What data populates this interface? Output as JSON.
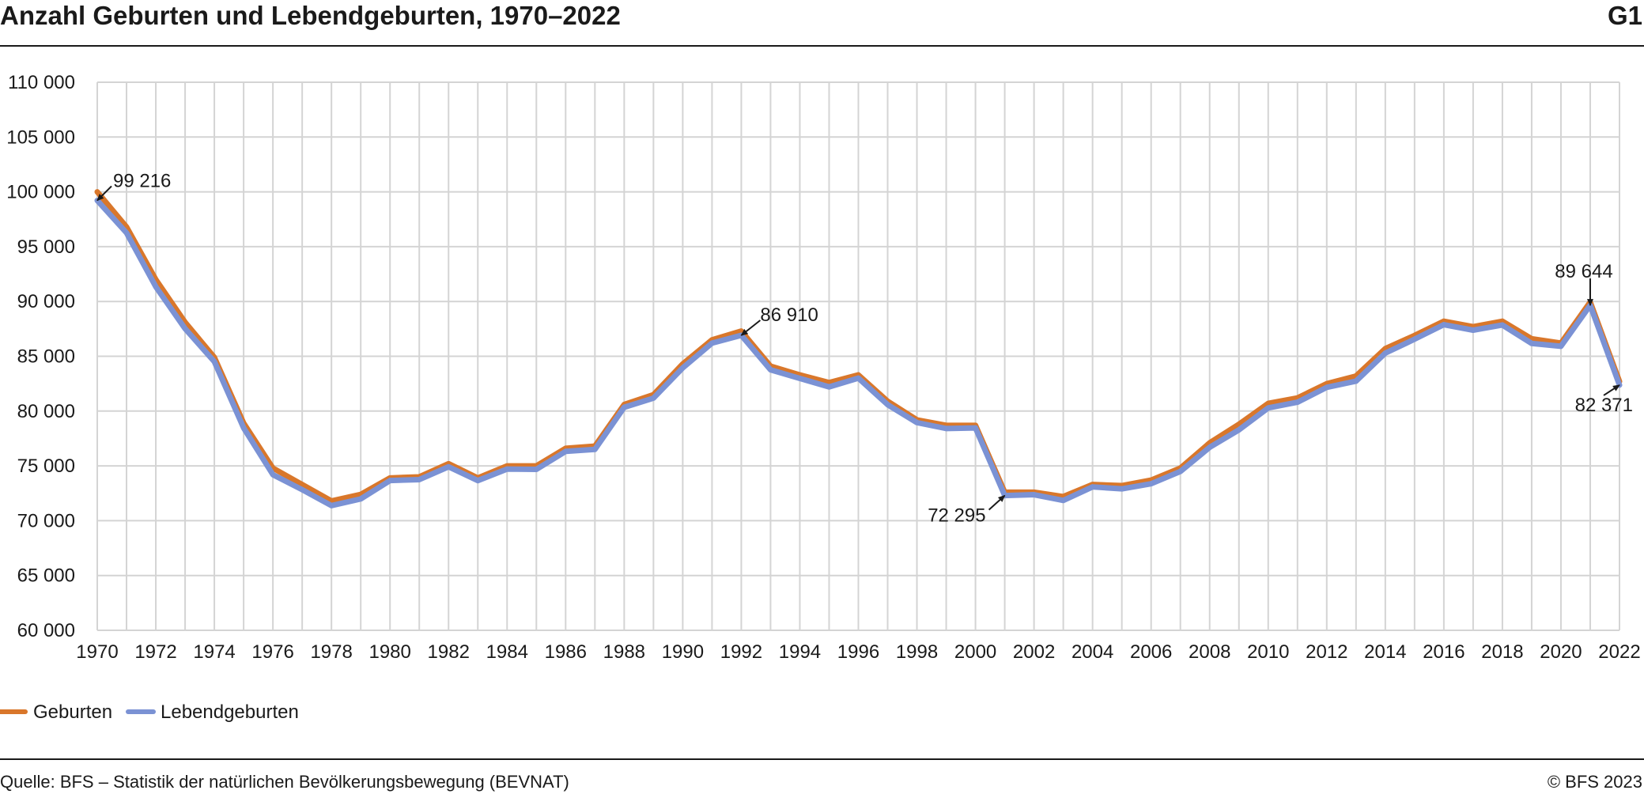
{
  "header": {
    "title": "Anzahl Geburten und Lebendgeburten, 1970–2022",
    "code": "G1"
  },
  "footer": {
    "source": "Quelle: BFS – Statistik der natürlichen Bevölkerungsbewegung (BEVNAT)",
    "copyright": "© BFS 2023"
  },
  "colors": {
    "geburten": "#d9772b",
    "lebendgeburten": "#7b92d4",
    "grid": "#d4d4d4",
    "text": "#1a1a1a"
  },
  "chart_data": {
    "type": "line",
    "title": "Anzahl Geburten und Lebendgeburten, 1970–2022",
    "xlabel": "",
    "ylabel": "",
    "x": [
      1970,
      1971,
      1972,
      1973,
      1974,
      1975,
      1976,
      1977,
      1978,
      1979,
      1980,
      1981,
      1982,
      1983,
      1984,
      1985,
      1986,
      1987,
      1988,
      1989,
      1990,
      1991,
      1992,
      1993,
      1994,
      1995,
      1996,
      1997,
      1998,
      1999,
      2000,
      2001,
      2002,
      2003,
      2004,
      2005,
      2006,
      2007,
      2008,
      2009,
      2010,
      2011,
      2012,
      2013,
      2014,
      2015,
      2016,
      2017,
      2018,
      2019,
      2020,
      2021,
      2022
    ],
    "x_ticks": [
      "1970",
      "1972",
      "1974",
      "1976",
      "1978",
      "1980",
      "1982",
      "1984",
      "1986",
      "1988",
      "1990",
      "1992",
      "1994",
      "1996",
      "1998",
      "2000",
      "2002",
      "2004",
      "2006",
      "2008",
      "2010",
      "2012",
      "2014",
      "2016",
      "2018",
      "2020",
      "2022"
    ],
    "y_ticks": [
      "60 000",
      "65 000",
      "70 000",
      "75 000",
      "80 000",
      "85 000",
      "90 000",
      "95 000",
      "100 000",
      "105 000",
      "110 000"
    ],
    "ylim": [
      60000,
      110000
    ],
    "grid": true,
    "legend_position": "bottom-left",
    "series": [
      {
        "name": "Geburten",
        "color": "#d9772b",
        "values": [
          100000,
          96800,
          92000,
          88100,
          84900,
          78900,
          74800,
          73300,
          71800,
          72400,
          73900,
          74000,
          75200,
          73900,
          75000,
          75000,
          76600,
          76800,
          80600,
          81500,
          84300,
          86500,
          87300,
          84100,
          83300,
          82600,
          83300,
          80900,
          79200,
          78700,
          78700,
          72600,
          72600,
          72200,
          73300,
          73200,
          73700,
          74800,
          77100,
          78800,
          80700,
          81200,
          82500,
          83200,
          85700,
          86900,
          88200,
          87700,
          88200,
          86600,
          86200,
          89950,
          82700
        ]
      },
      {
        "name": "Lebendgeburten",
        "color": "#7b92d4",
        "values": [
          99216,
          96261,
          91342,
          87518,
          84507,
          78464,
          74199,
          72829,
          71375,
          71986,
          73661,
          73747,
          74916,
          73659,
          74710,
          74684,
          76320,
          76505,
          80345,
          81180,
          83939,
          86200,
          86910,
          83762,
          82980,
          82203,
          83007,
          80584,
          78949,
          78408,
          78458,
          72295,
          72372,
          71848,
          73082,
          72903,
          73371,
          74494,
          76691,
          78286,
          80290,
          80808,
          82164,
          82731,
          85287,
          86559,
          87883,
          87381,
          87851,
          86172,
          85914,
          89644,
          82371
        ]
      }
    ],
    "annotations": [
      {
        "year": 1970,
        "text": "99 216"
      },
      {
        "year": 1992,
        "text": "86 910"
      },
      {
        "year": 2001,
        "text": "72 295"
      },
      {
        "year": 2021,
        "text": "89 644"
      },
      {
        "year": 2022,
        "text": "82 371"
      }
    ]
  }
}
